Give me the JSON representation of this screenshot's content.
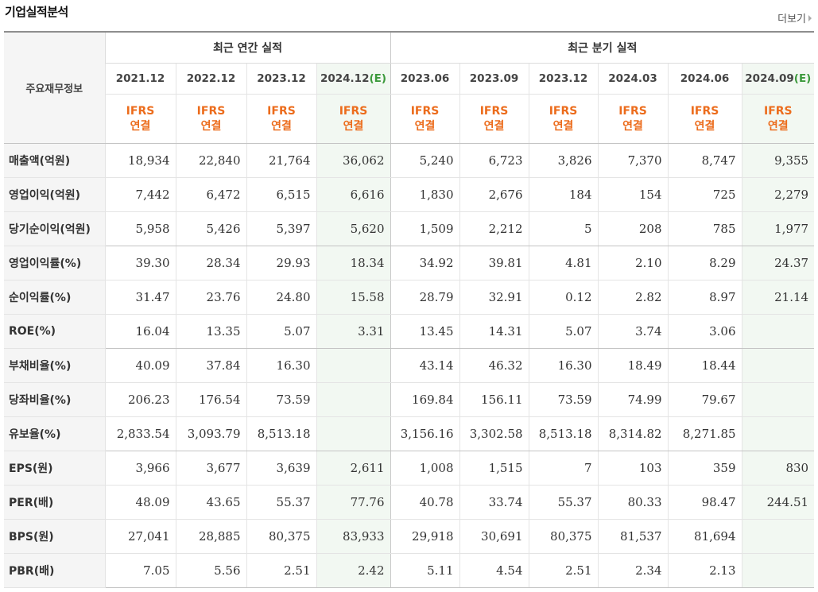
{
  "page": {
    "title": "기업실적분석",
    "more_label": "더보기",
    "more_icon": "chevron-right-icon"
  },
  "table": {
    "label_header": "주요재무정보",
    "group_annual": "최근 연간 실적",
    "group_quarter": "최근 분기 실적",
    "periods": [
      {
        "base": "2021.12",
        "est": ""
      },
      {
        "base": "2022.12",
        "est": ""
      },
      {
        "base": "2023.12",
        "est": ""
      },
      {
        "base": "2024.12",
        "est": "(E)"
      },
      {
        "base": "2023.06",
        "est": ""
      },
      {
        "base": "2023.09",
        "est": ""
      },
      {
        "base": "2023.12",
        "est": ""
      },
      {
        "base": "2024.03",
        "est": ""
      },
      {
        "base": "2024.06",
        "est": ""
      },
      {
        "base": "2024.09",
        "est": "(E)"
      }
    ],
    "standard_line1": "IFRS",
    "standard_line2": "연결",
    "rows": [
      {
        "label": "매출액(억원)",
        "values": [
          "18,934",
          "22,840",
          "21,764",
          "36,062",
          "5,240",
          "6,723",
          "3,826",
          "7,370",
          "8,747",
          "9,355"
        ]
      },
      {
        "label": "영업이익(억원)",
        "values": [
          "7,442",
          "6,472",
          "6,515",
          "6,616",
          "1,830",
          "2,676",
          "184",
          "154",
          "725",
          "2,279"
        ]
      },
      {
        "label": "당기순이익(억원)",
        "values": [
          "5,958",
          "5,426",
          "5,397",
          "5,620",
          "1,509",
          "2,212",
          "5",
          "208",
          "785",
          "1,977"
        ]
      },
      {
        "label": "영업이익률(%)",
        "values": [
          "39.30",
          "28.34",
          "29.93",
          "18.34",
          "34.92",
          "39.81",
          "4.81",
          "2.10",
          "8.29",
          "24.37"
        ]
      },
      {
        "label": "순이익률(%)",
        "values": [
          "31.47",
          "23.76",
          "24.80",
          "15.58",
          "28.79",
          "32.91",
          "0.12",
          "2.82",
          "8.97",
          "21.14"
        ]
      },
      {
        "label": "ROE(%)",
        "values": [
          "16.04",
          "13.35",
          "5.07",
          "3.31",
          "13.45",
          "14.31",
          "5.07",
          "3.74",
          "3.06",
          ""
        ]
      },
      {
        "label": "부채비율(%)",
        "values": [
          "40.09",
          "37.84",
          "16.30",
          "",
          "43.14",
          "46.32",
          "16.30",
          "18.49",
          "18.44",
          ""
        ]
      },
      {
        "label": "당좌비율(%)",
        "values": [
          "206.23",
          "176.54",
          "73.59",
          "",
          "169.84",
          "156.11",
          "73.59",
          "74.99",
          "79.67",
          ""
        ]
      },
      {
        "label": "유보율(%)",
        "values": [
          "2,833.54",
          "3,093.79",
          "8,513.18",
          "",
          "3,156.16",
          "3,302.58",
          "8,513.18",
          "8,314.82",
          "8,271.85",
          ""
        ]
      },
      {
        "label": "EPS(원)",
        "values": [
          "3,966",
          "3,677",
          "3,639",
          "2,611",
          "1,008",
          "1,515",
          "7",
          "103",
          "359",
          "830"
        ]
      },
      {
        "label": "PER(배)",
        "values": [
          "48.09",
          "43.65",
          "55.37",
          "77.76",
          "40.78",
          "33.74",
          "55.37",
          "80.33",
          "98.47",
          "244.51"
        ]
      },
      {
        "label": "BPS(원)",
        "values": [
          "27,041",
          "28,885",
          "80,375",
          "83,933",
          "29,918",
          "30,691",
          "80,375",
          "81,537",
          "81,694",
          ""
        ]
      },
      {
        "label": "PBR(배)",
        "values": [
          "7.05",
          "5.56",
          "2.51",
          "2.42",
          "5.11",
          "4.54",
          "2.51",
          "2.34",
          "2.13",
          ""
        ]
      }
    ]
  },
  "colors": {
    "ifrs_orange": "#ec6c1c",
    "estimate_bg": "#f2f8f2",
    "estimate_text": "#3c9a3c",
    "label_bg": "#f5f5f5"
  }
}
